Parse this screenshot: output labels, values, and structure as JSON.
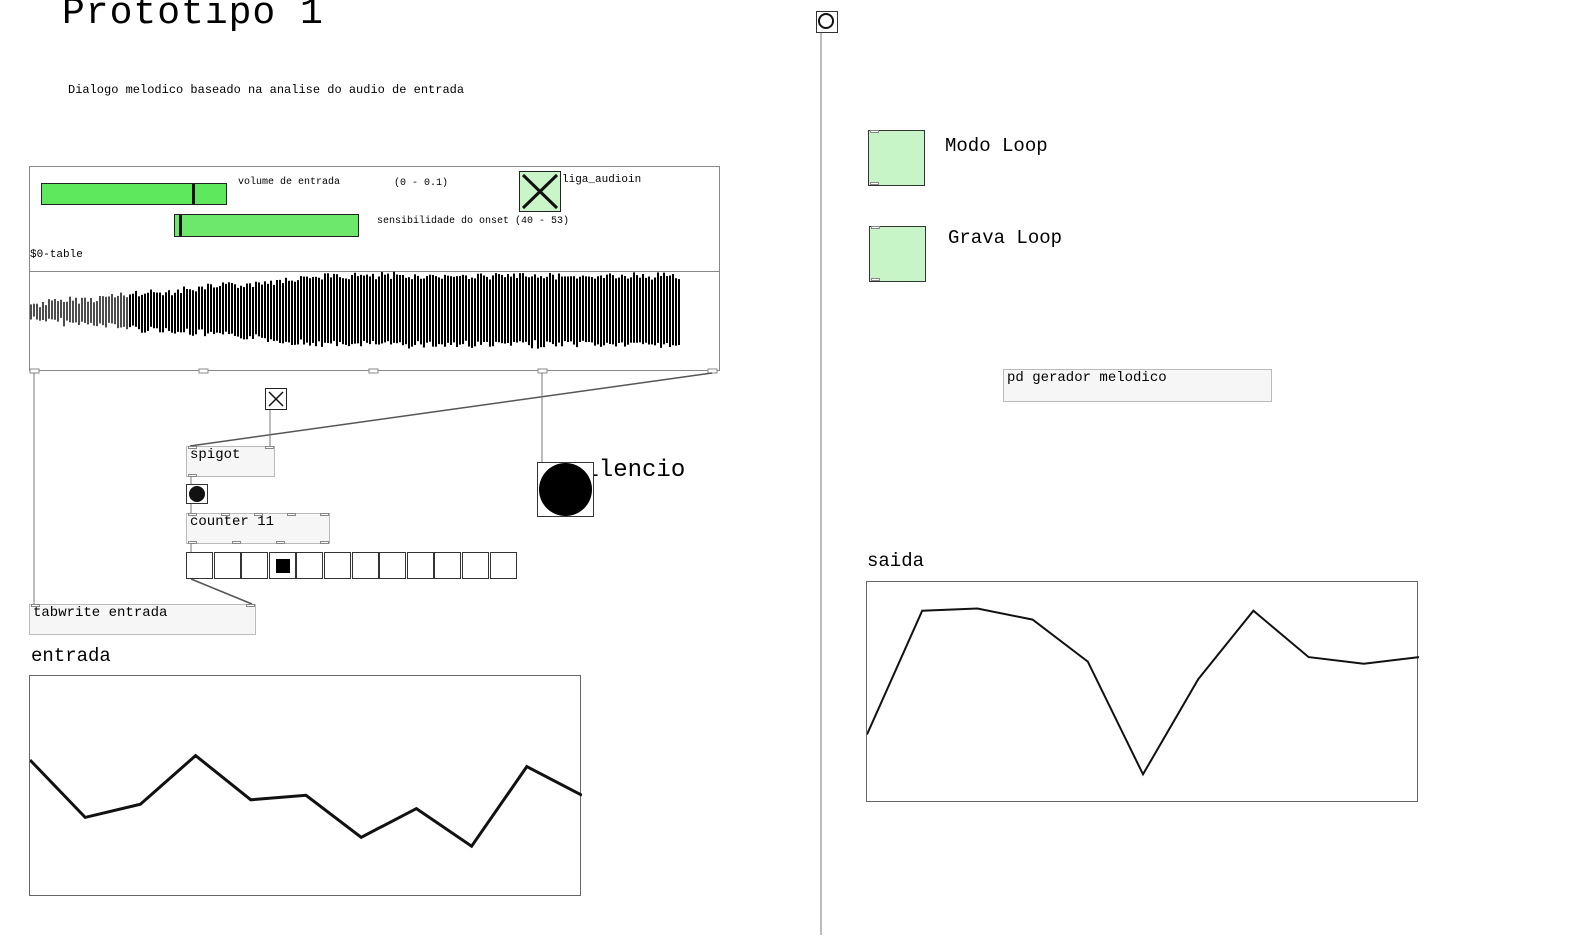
{
  "header": {
    "title": "Prototipo 1",
    "subtitle": "Dialogo melodico baseado na analise do audio de entrada"
  },
  "controls": {
    "volume_label": "volume de entrada",
    "volume_range": "(0 - 0.1)",
    "volume_level": 0.83,
    "sensitivity_label": "sensibilidade do onset (40 - 53)",
    "sensitivity_level": 0.02,
    "audioin_label": "liga_audioin",
    "audioin_on": true,
    "table_label": "$0-table"
  },
  "objects": {
    "spigot": "spigot",
    "counter": "counter 11",
    "tabwrite": "tabwrite entrada",
    "silence_label": "silencio",
    "generator": "pd gerador melodico",
    "radio_count": 12,
    "radio_selected": 3
  },
  "loop": {
    "modo_label": "Modo Loop",
    "grava_label": "Grava Loop"
  },
  "arrays": {
    "entrada_label": "entrada",
    "saida_label": "saida"
  },
  "chart_data": [
    {
      "type": "line",
      "name_on_chart": "entrada",
      "x": [
        0,
        1,
        2,
        3,
        4,
        5,
        6,
        7,
        8,
        9,
        10
      ],
      "y": [
        0.62,
        0.36,
        0.42,
        0.64,
        0.44,
        0.46,
        0.27,
        0.4,
        0.23,
        0.59,
        0.46
      ],
      "ylim": [
        0,
        1
      ]
    },
    {
      "type": "line",
      "name_on_chart": "saida",
      "x": [
        0,
        1,
        2,
        3,
        4,
        5,
        6,
        7,
        8,
        9,
        10
      ],
      "y": [
        0.31,
        0.87,
        0.88,
        0.83,
        0.64,
        0.13,
        0.56,
        0.87,
        0.66,
        0.63,
        0.66
      ],
      "ylim": [
        0,
        1
      ]
    }
  ]
}
